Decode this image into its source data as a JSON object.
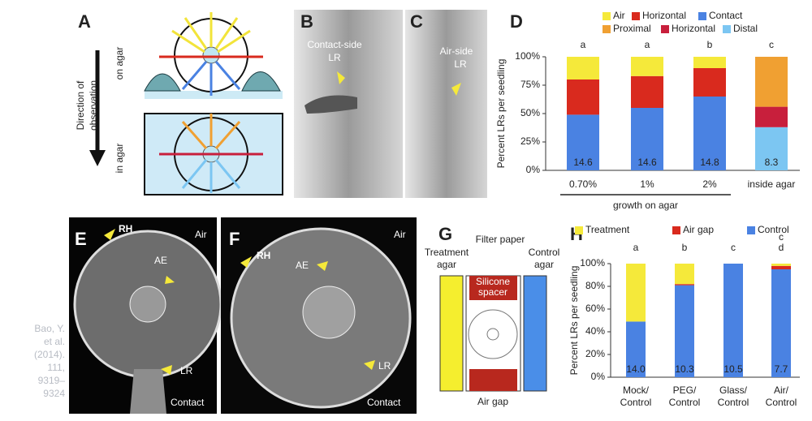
{
  "panels": {
    "A": {
      "label": "A",
      "on_agar": "on agar",
      "in_agar": "in agar",
      "direction": [
        "Direction of",
        "observation"
      ]
    },
    "B": {
      "label": "B",
      "annotation": [
        "Contact-side",
        "LR"
      ]
    },
    "C": {
      "label": "C",
      "annotation": [
        "Air-side",
        "LR"
      ]
    },
    "E": {
      "label": "E",
      "rh": "RH",
      "air": "Air",
      "ae": "AE",
      "lr": "LR",
      "contact": "Contact"
    },
    "F": {
      "label": "F",
      "rh": "RH",
      "air": "Air",
      "ae": "AE",
      "lr": "LR",
      "contact": "Contact"
    },
    "G": {
      "label": "G",
      "treatment": [
        "Treatment",
        "agar"
      ],
      "filter": "Filter paper",
      "control": [
        "Control",
        "agar"
      ],
      "spacer": [
        "Silicone",
        "spacer"
      ],
      "air_gap": "Air gap"
    }
  },
  "citation": [
    "Bao, Y.",
    "et al.",
    "(2014).",
    "111,",
    "9319–",
    "9324"
  ],
  "chart_data": [
    {
      "type": "stacked_bar",
      "panel_label": "D",
      "ylabel": "Percent LRs per seedling",
      "categories": [
        "0.70%",
        "1%",
        "2%",
        "inside agar"
      ],
      "group_label": "growth on agar",
      "series": [
        {
          "name": "Air",
          "color": "#f5e93a",
          "values": [
            20,
            17,
            10,
            null
          ]
        },
        {
          "name": "Horizontal",
          "color": "#d92a1e",
          "values": [
            31,
            28,
            25,
            null
          ]
        },
        {
          "name": "Contact",
          "color": "#4a82e2",
          "values": [
            49,
            55,
            65,
            null
          ]
        },
        {
          "name": "Proximal",
          "color": "#f0a032",
          "values": [
            null,
            null,
            null,
            44
          ]
        },
        {
          "name": "Horizontal",
          "color": "#c81f3c",
          "values": [
            null,
            null,
            null,
            18
          ]
        },
        {
          "name": "Distal",
          "color": "#7cc6f2",
          "values": [
            null,
            null,
            null,
            38
          ]
        }
      ],
      "letters": [
        [
          "a"
        ],
        [
          "a"
        ],
        [
          "b"
        ],
        [
          "c"
        ]
      ],
      "n": [
        "14.6",
        "14.6",
        "14.8",
        "8.3"
      ],
      "ylim": [
        0,
        100
      ],
      "yticks": [
        {
          "value": 0,
          "label": "0%"
        },
        {
          "value": 25,
          "label": "25%"
        },
        {
          "value": 50,
          "label": "50%"
        },
        {
          "value": 75,
          "label": "75%"
        },
        {
          "value": 100,
          "label": "100%"
        }
      ]
    },
    {
      "type": "stacked_bar",
      "panel_label": "H",
      "ylabel": "Percent LRs per seedling",
      "categories": [
        [
          "Mock/",
          "Control"
        ],
        [
          "PEG/",
          "Control"
        ],
        [
          "Glass/",
          "Control"
        ],
        [
          "Air/",
          "Control"
        ]
      ],
      "series": [
        {
          "name": "Treatment",
          "color": "#f5e93a",
          "values": [
            51,
            18,
            0,
            2
          ]
        },
        {
          "name": "Air gap",
          "color": "#d92a1e",
          "values": [
            0,
            1,
            0,
            3
          ]
        },
        {
          "name": "Control",
          "color": "#4a82e2",
          "values": [
            49,
            81,
            100,
            95
          ]
        }
      ],
      "letters": [
        [
          "a"
        ],
        [
          "b"
        ],
        [
          "c"
        ],
        [
          "c",
          "d"
        ]
      ],
      "n": [
        "14.0",
        "10.3",
        "10.5",
        "7.7"
      ],
      "ylim": [
        0,
        100
      ],
      "yticks": [
        {
          "value": 0,
          "label": "0%"
        },
        {
          "value": 20,
          "label": "20%"
        },
        {
          "value": 40,
          "label": "40%"
        },
        {
          "value": 60,
          "label": "60%"
        },
        {
          "value": 80,
          "label": "80%"
        },
        {
          "value": 100,
          "label": "100%"
        }
      ]
    }
  ]
}
